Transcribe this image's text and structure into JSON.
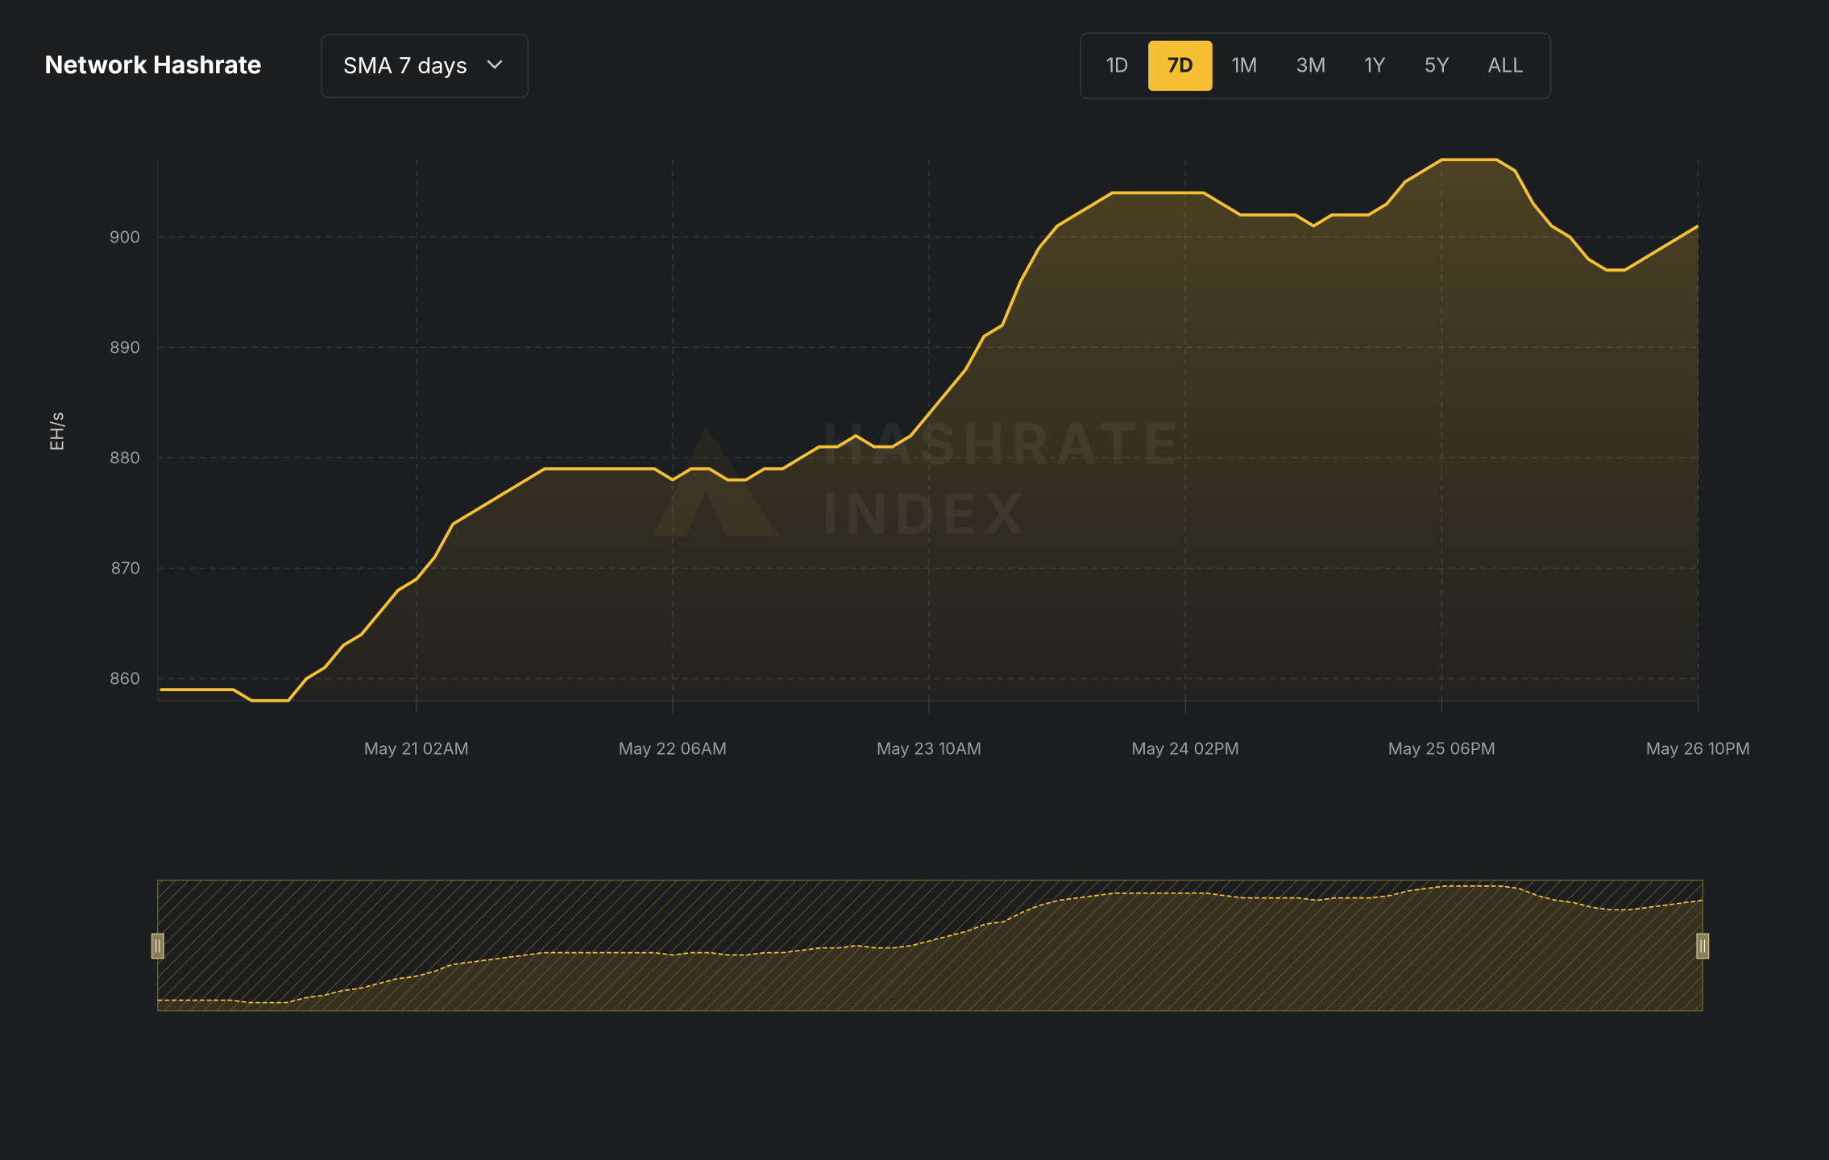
{
  "header": {
    "title": "Network Hashrate",
    "dropdown": "SMA 7 days",
    "ranges": [
      "1D",
      "7D",
      "1M",
      "3M",
      "1Y",
      "5Y",
      "ALL"
    ],
    "active_range": "7D"
  },
  "watermark": [
    "HASHRATE",
    "INDEX"
  ],
  "chart_data": {
    "type": "area",
    "ylabel": "EH/s",
    "categories": [
      null,
      null,
      null,
      null,
      null,
      null,
      null,
      null,
      null,
      null,
      null,
      null,
      null,
      null,
      "May 21 02AM",
      null,
      null,
      null,
      null,
      null,
      null,
      null,
      null,
      null,
      null,
      null,
      null,
      null,
      "May 22 06AM",
      null,
      null,
      null,
      null,
      null,
      null,
      null,
      null,
      null,
      null,
      null,
      null,
      null,
      "May 23 10AM",
      null,
      null,
      null,
      null,
      null,
      null,
      null,
      null,
      null,
      null,
      null,
      null,
      null,
      "May 24 02PM",
      null,
      null,
      null,
      null,
      null,
      null,
      null,
      null,
      null,
      null,
      null,
      null,
      null,
      "May 25 06PM",
      null,
      null,
      null,
      null,
      null,
      null,
      null,
      null,
      null,
      null,
      null,
      null,
      null,
      "May 26 10PM"
    ],
    "values": [
      859,
      859,
      859,
      859,
      859,
      858,
      858,
      858,
      860,
      861,
      863,
      864,
      866,
      868,
      869,
      871,
      874,
      875,
      876,
      877,
      878,
      879,
      879,
      879,
      879,
      879,
      879,
      879,
      878,
      879,
      879,
      878,
      878,
      879,
      879,
      880,
      881,
      881,
      882,
      881,
      881,
      882,
      884,
      886,
      888,
      891,
      892,
      896,
      899,
      901,
      902,
      903,
      904,
      904,
      904,
      904,
      904,
      904,
      903,
      902,
      902,
      902,
      902,
      901,
      902,
      902,
      902,
      903,
      905,
      906,
      907,
      907,
      907,
      907,
      906,
      903,
      901,
      900,
      898,
      897,
      897,
      898,
      899,
      900,
      901
    ],
    "color": "#f5c033",
    "ylim": [
      858,
      907
    ],
    "yticks": [
      860,
      870,
      880,
      890,
      900
    ],
    "grid": true
  }
}
